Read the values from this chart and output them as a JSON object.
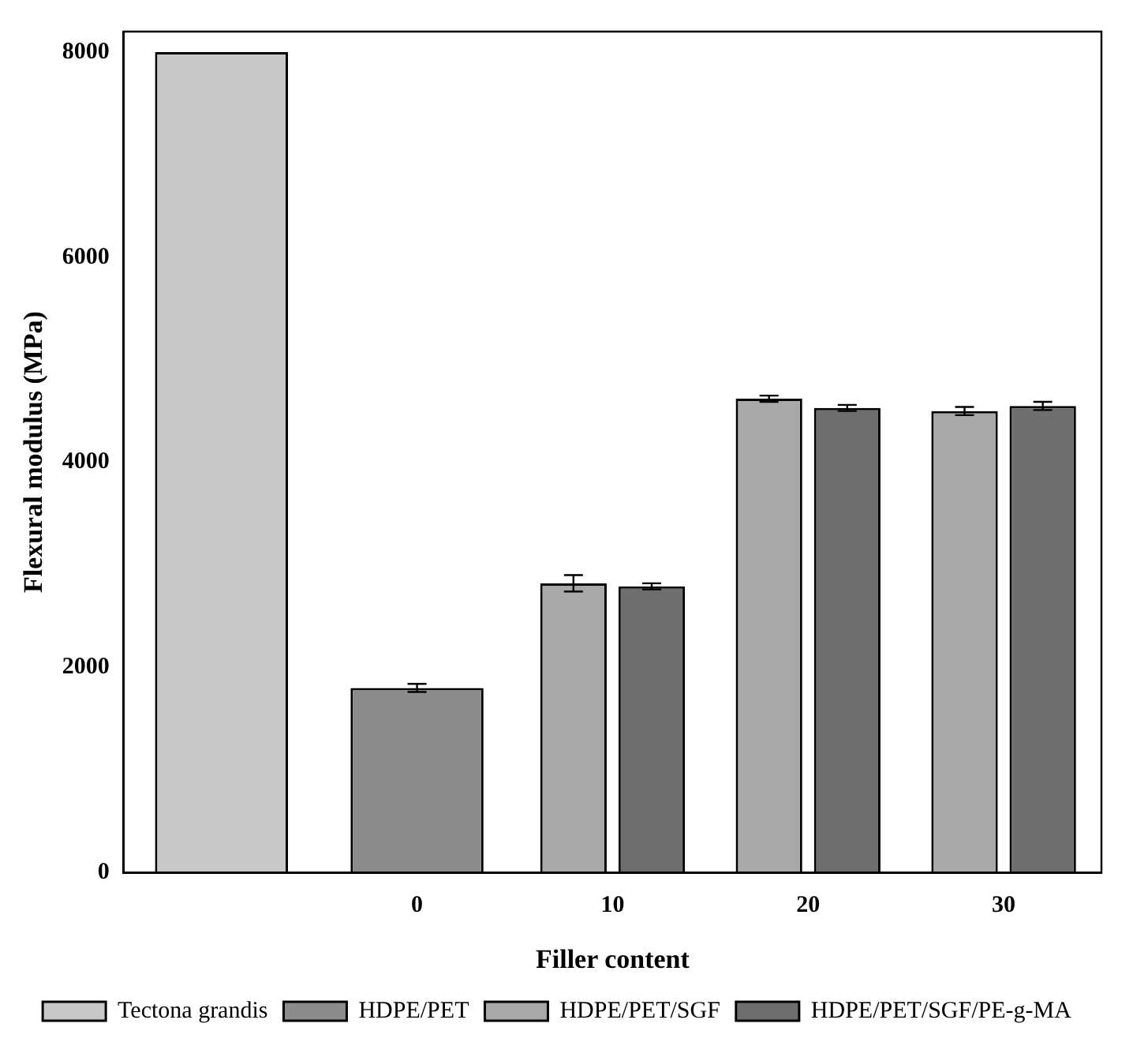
{
  "chart_data": {
    "type": "bar",
    "xlabel": "Filler content",
    "ylabel": "Flexural modulus (MPa)",
    "categories": [
      null,
      "0",
      "10",
      "20",
      "30"
    ],
    "series": [
      {
        "name": "Tectona grandis",
        "color": "#c8c8c8",
        "values": [
          8000,
          null,
          null,
          null,
          null
        ],
        "errors": [
          null,
          null,
          null,
          null,
          null
        ]
      },
      {
        "name": "HDPE/PET",
        "color": "#8c8c8c",
        "values": [
          null,
          1800,
          null,
          null,
          null
        ],
        "errors": [
          null,
          40,
          null,
          null,
          null
        ]
      },
      {
        "name": "HDPE/PET/SGF",
        "color": "#a8a8a8",
        "values": [
          null,
          null,
          2820,
          4620,
          4500
        ],
        "errors": [
          null,
          null,
          80,
          30,
          40
        ]
      },
      {
        "name": "HDPE/PET/SGF/PE-g-MA",
        "color": "#6e6e6e",
        "values": [
          null,
          null,
          2790,
          4530,
          4550
        ],
        "errors": [
          null,
          null,
          30,
          30,
          40
        ]
      }
    ],
    "ylim": [
      0,
      8200
    ],
    "yticks": [
      0,
      2000,
      4000,
      6000,
      8000
    ],
    "grid": false,
    "legend": "bottom"
  }
}
